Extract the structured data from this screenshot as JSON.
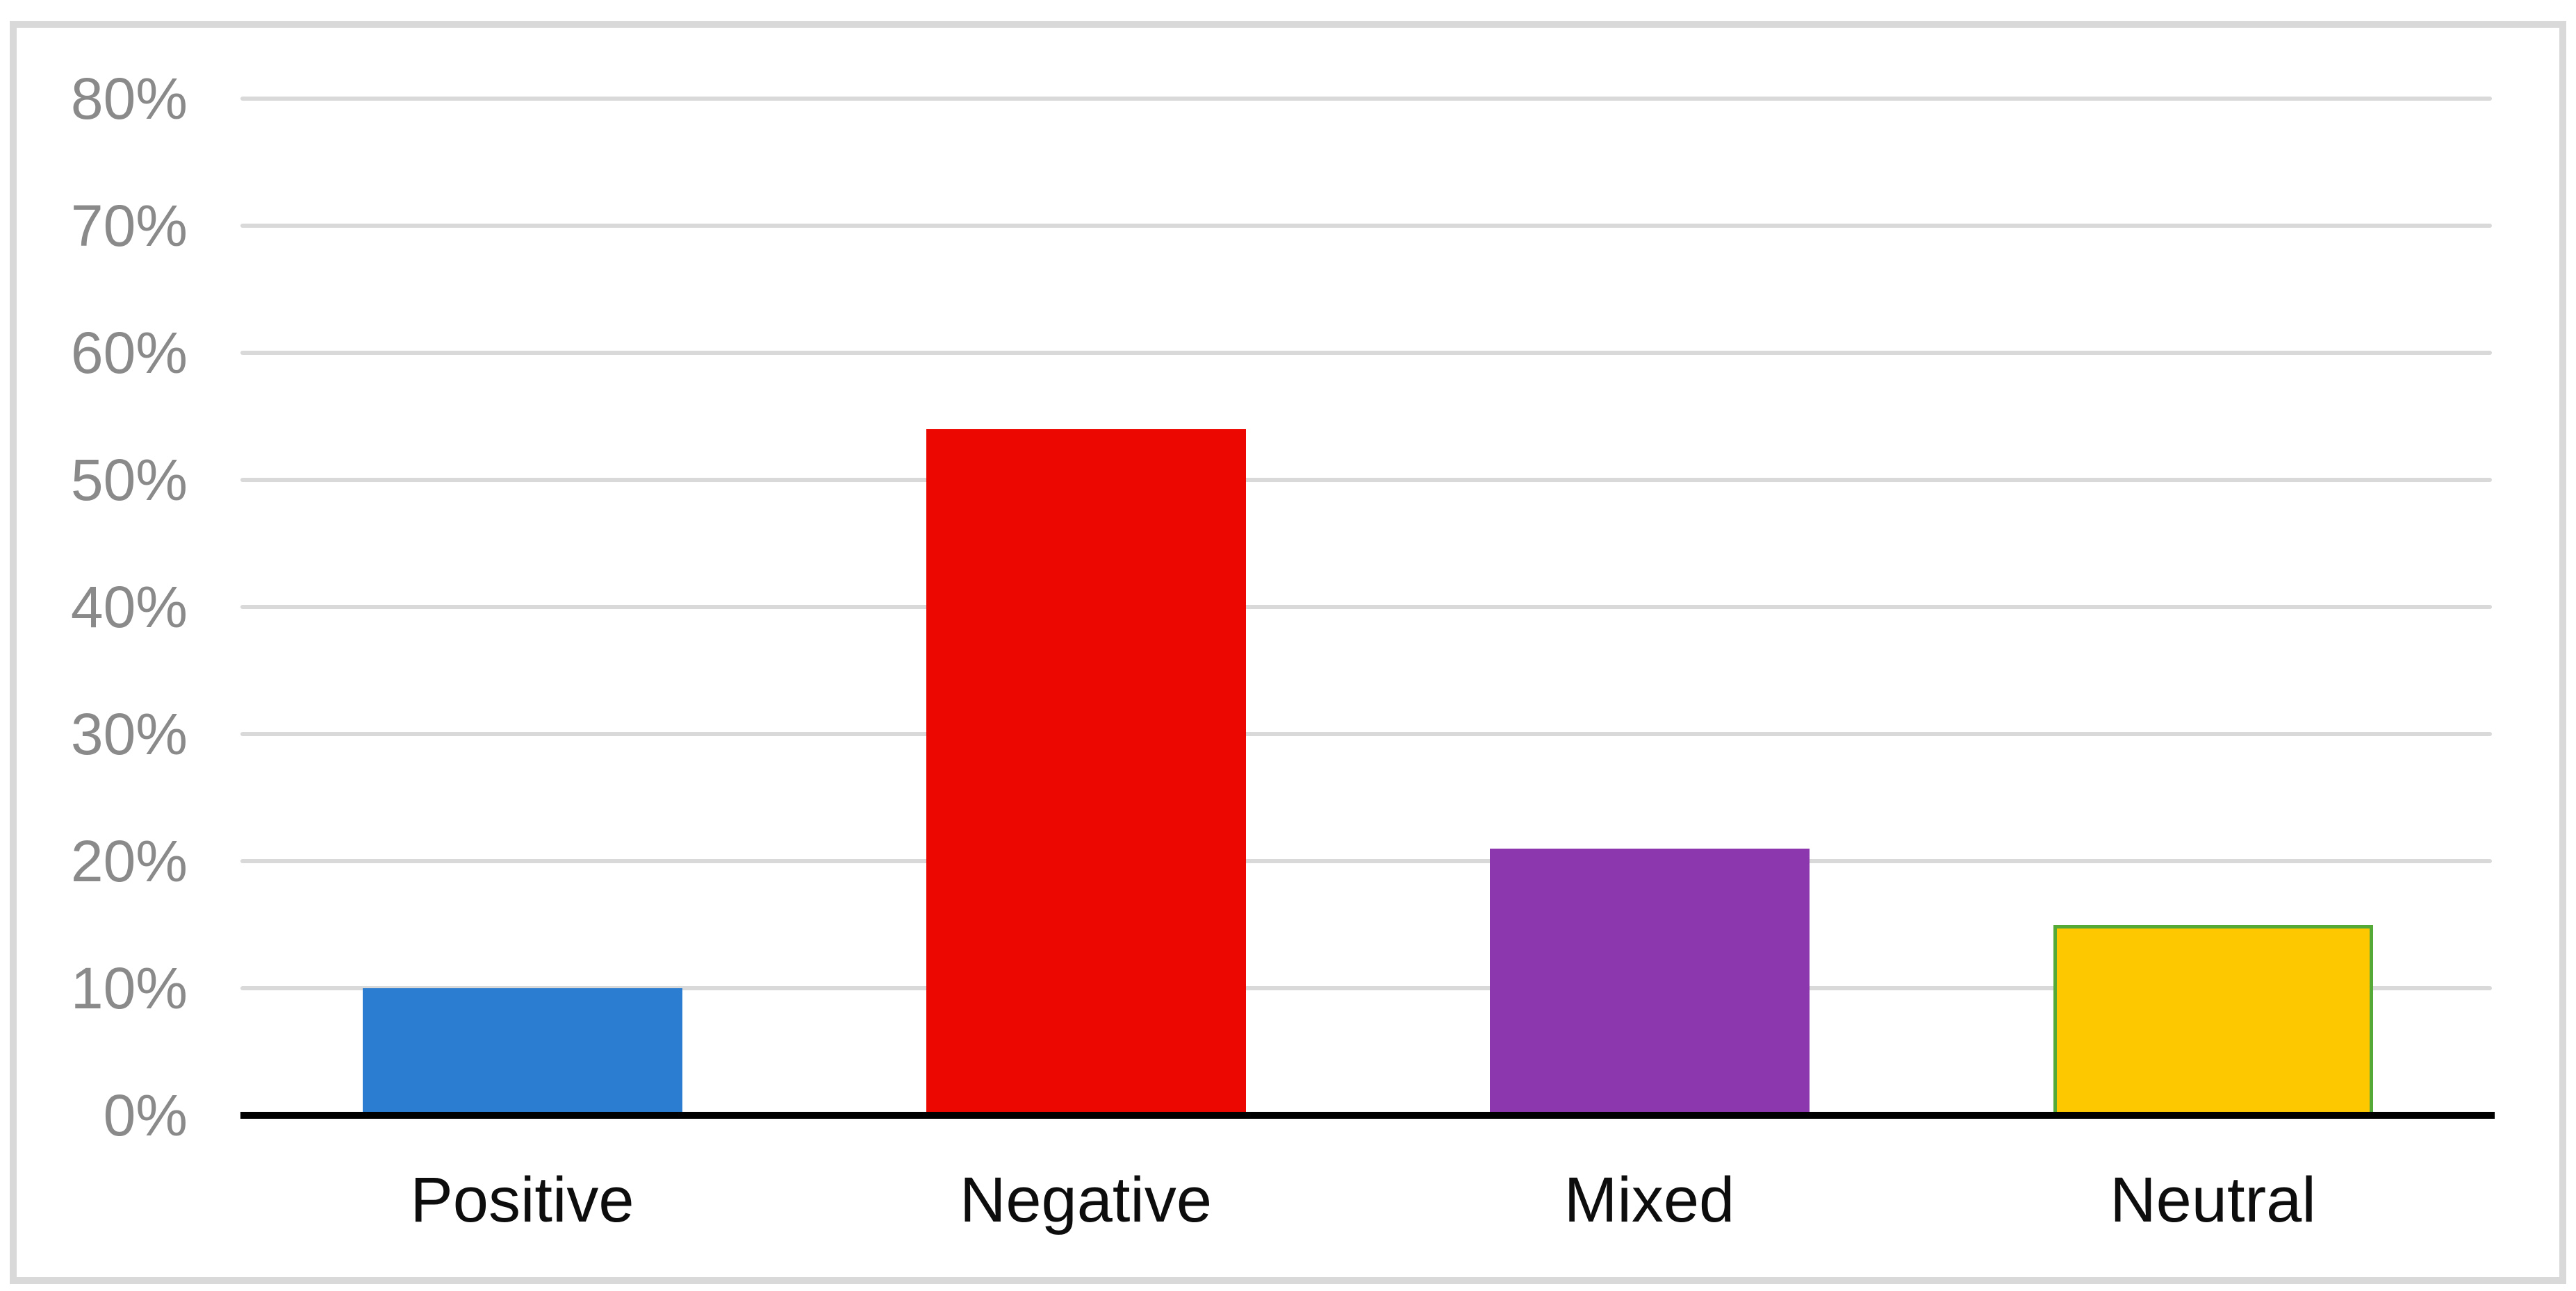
{
  "chart_data": {
    "type": "bar",
    "title": "",
    "xlabel": "",
    "ylabel": "",
    "categories": [
      "Positive",
      "Negative",
      "Mixed",
      "Neutral"
    ],
    "values": [
      10,
      54,
      21,
      15
    ],
    "value_unit": "%",
    "ylim": [
      0,
      80
    ],
    "y_ticks": [
      0,
      10,
      20,
      30,
      40,
      50,
      60,
      70,
      80
    ],
    "y_tick_labels": [
      "0%",
      "10%",
      "20%",
      "30%",
      "40%",
      "50%",
      "60%",
      "70%",
      "80%"
    ],
    "grid": true,
    "legend": "none",
    "bar_colors": [
      "#2a7dd1",
      "#ec0800",
      "#8c37ae",
      "#fec801"
    ],
    "bar_border_colors": [
      "none",
      "none",
      "none",
      "#55a937"
    ],
    "colors": {
      "background": "#ffffff",
      "frame_border": "#d9d9d9",
      "gridline": "#d9d9d9",
      "axis_line": "#000000",
      "tick_label_text": "#8a8a8a",
      "category_label_text": "#0d0d0d"
    }
  }
}
